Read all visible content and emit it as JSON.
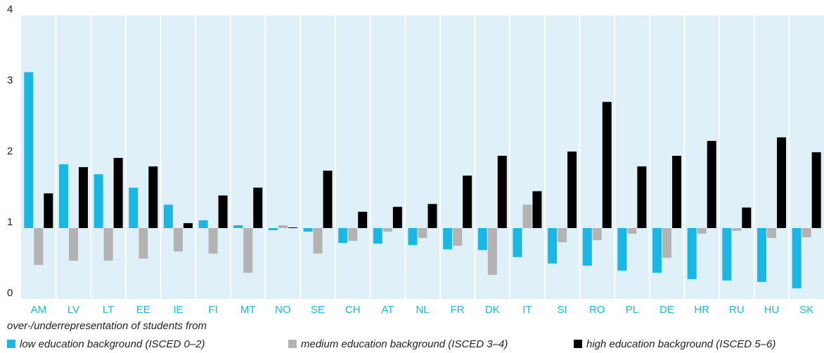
{
  "chart_data": {
    "type": "bar",
    "categories": [
      "AM",
      "LV",
      "LT",
      "EE",
      "IE",
      "FI",
      "MT",
      "NO",
      "SE",
      "CH",
      "AT",
      "NL",
      "FR",
      "DK",
      "IT",
      "SI",
      "RO",
      "PL",
      "DE",
      "HR",
      "RU",
      "HU",
      "SK"
    ],
    "legend_title": "over-/underrepresentation of students from",
    "series": [
      {
        "name": "low education background (ISCED 0–2)",
        "color": "#1ab7e4",
        "values": [
          3.2,
          1.9,
          1.76,
          1.57,
          1.33,
          1.11,
          1.04,
          0.97,
          0.95,
          0.79,
          0.78,
          0.76,
          0.7,
          0.69,
          0.59,
          0.5,
          0.47,
          0.4,
          0.37,
          0.28,
          0.26,
          0.24,
          0.15
        ]
      },
      {
        "name": "medium education background (ISCED 3–4)",
        "color": "#b3b3b3",
        "values": [
          0.48,
          0.54,
          0.54,
          0.57,
          0.67,
          0.64,
          0.37,
          1.04,
          0.64,
          0.82,
          0.95,
          0.86,
          0.75,
          0.34,
          1.33,
          0.8,
          0.83,
          0.92,
          0.58,
          0.92,
          0.96,
          0.86,
          0.87
        ]
      },
      {
        "name": "high education background (ISCED 5–6)",
        "color": "#000000",
        "values": [
          1.49,
          1.86,
          1.99,
          1.87,
          1.07,
          1.46,
          1.57,
          1.01,
          1.81,
          1.23,
          1.3,
          1.34,
          1.74,
          2.02,
          1.52,
          2.08,
          2.78,
          1.87,
          2.02,
          2.23,
          1.29,
          2.28,
          2.07
        ]
      }
    ],
    "baseline": 1,
    "ylim": [
      0,
      4
    ],
    "yticks": [
      0,
      1,
      2,
      3,
      4
    ],
    "legend": "bottom"
  }
}
